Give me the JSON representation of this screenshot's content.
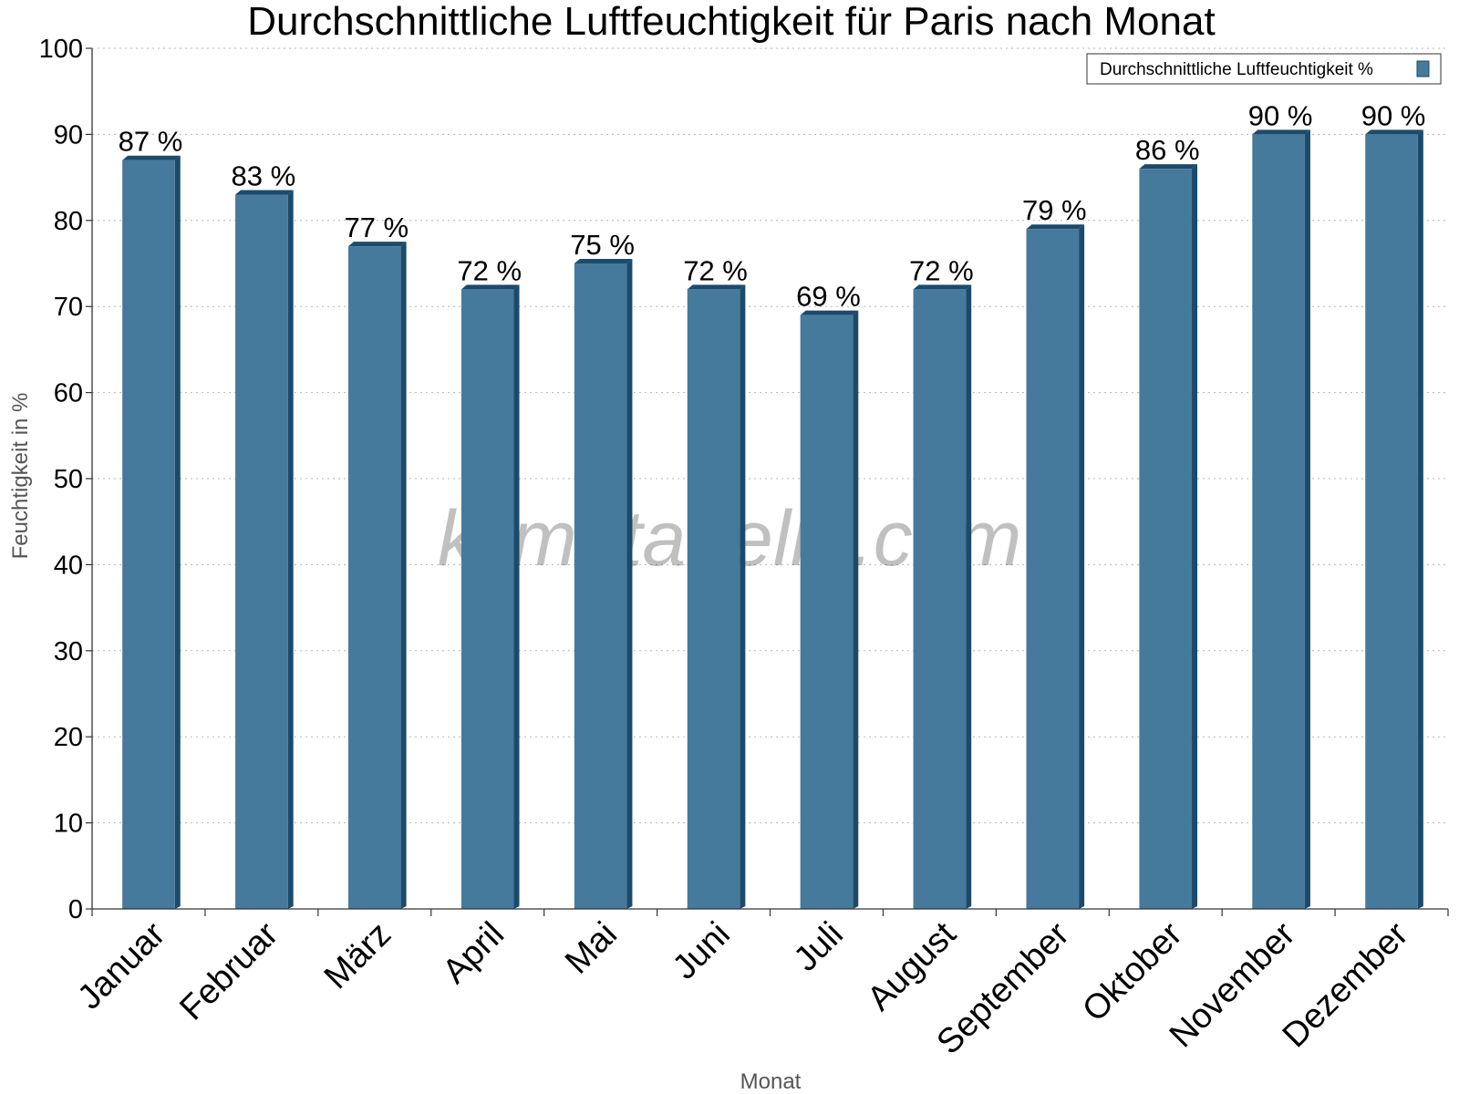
{
  "watermark": "klimatabelle.com",
  "chart_data": {
    "type": "bar",
    "title": "Durchschnittliche Luftfeuchtigkeit für Paris nach Monat",
    "xlabel": "Monat",
    "ylabel": "Feuchtigkeit in %",
    "ylim": [
      0,
      100
    ],
    "yticks": [
      "0",
      "10",
      "20",
      "30",
      "40",
      "50",
      "60",
      "70",
      "80",
      "90",
      "100"
    ],
    "grid": true,
    "legend_position": "top-right",
    "categories": [
      "Januar",
      "Februar",
      "März",
      "April",
      "Mai",
      "Juni",
      "Juli",
      "August",
      "September",
      "Oktober",
      "November",
      "Dezember"
    ],
    "series": [
      {
        "name": "Durchschnittliche Luftfeuchtigkeit %",
        "values": [
          87,
          83,
          77,
          72,
          75,
          72,
          69,
          72,
          79,
          86,
          90,
          90
        ],
        "labels": [
          "87 %",
          "83 %",
          "77 %",
          "72 %",
          "75 %",
          "72 %",
          "69 %",
          "72 %",
          "79 %",
          "86 %",
          "90 %",
          "90 %"
        ],
        "color": "#467a9c",
        "side_color": "#1c4a6b"
      }
    ]
  }
}
